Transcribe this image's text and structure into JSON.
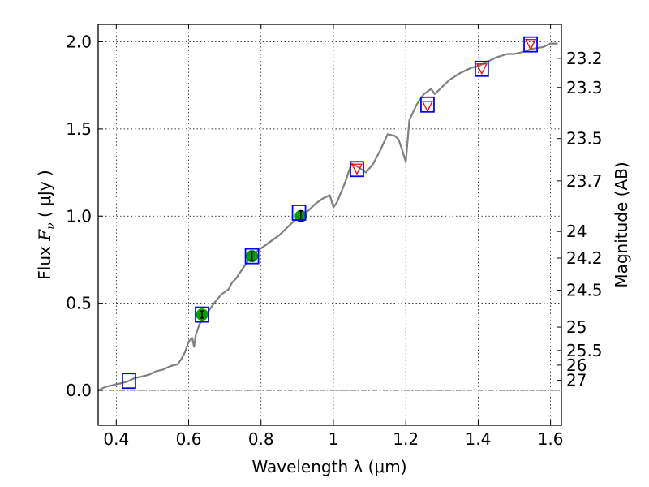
{
  "chart_data": {
    "type": "scatter",
    "xlabel": "Wavelength  λ (μm)",
    "ylabel_parts": [
      "Flux  ",
      "F",
      "ν",
      "  ( μJy )"
    ],
    "ylabel_right": "Magnitude (AB)",
    "xlim": [
      0.35,
      1.63
    ],
    "ylim": [
      -0.2,
      2.1
    ],
    "grid": true,
    "x_ticks": [
      0.4,
      0.6,
      0.8,
      1.0,
      1.2,
      1.4,
      1.6
    ],
    "x_tick_labels": [
      "0.4",
      "0.6",
      "0.8",
      "1",
      "1.2",
      "1.4",
      "1.6"
    ],
    "y_ticks": [
      0.0,
      0.5,
      1.0,
      1.5,
      2.0
    ],
    "y_tick_labels": [
      "0.0",
      "0.5",
      "1.0",
      "1.5",
      "2.0"
    ],
    "right_ticks": [
      {
        "label": "23.2",
        "flux": 1.905
      },
      {
        "label": "23.3",
        "flux": 1.738
      },
      {
        "label": "23.5",
        "flux": 1.445
      },
      {
        "label": "23.7",
        "flux": 1.202
      },
      {
        "label": "24",
        "flux": 0.912
      },
      {
        "label": "24.2",
        "flux": 0.759
      },
      {
        "label": "24.5",
        "flux": 0.575
      },
      {
        "label": "25",
        "flux": 0.363
      },
      {
        "label": "25.5",
        "flux": 0.229
      },
      {
        "label": "26",
        "flux": 0.145
      },
      {
        "label": "27",
        "flux": 0.058
      }
    ],
    "series": [
      {
        "name": "model_spectrum",
        "style": "line",
        "color": "#808080",
        "x": [
          0.35,
          0.37,
          0.39,
          0.41,
          0.43,
          0.45,
          0.47,
          0.49,
          0.51,
          0.53,
          0.55,
          0.57,
          0.58,
          0.59,
          0.6,
          0.61,
          0.615,
          0.62,
          0.63,
          0.65,
          0.67,
          0.69,
          0.71,
          0.72,
          0.73,
          0.75,
          0.77,
          0.79,
          0.81,
          0.83,
          0.85,
          0.87,
          0.89,
          0.91,
          0.93,
          0.95,
          0.97,
          0.99,
          1.0,
          1.01,
          1.03,
          1.05,
          1.07,
          1.09,
          1.11,
          1.13,
          1.15,
          1.17,
          1.18,
          1.19,
          1.2,
          1.21,
          1.23,
          1.25,
          1.27,
          1.28,
          1.3,
          1.32,
          1.35,
          1.38,
          1.4,
          1.42,
          1.45,
          1.48,
          1.5,
          1.52,
          1.55,
          1.58,
          1.6,
          1.62
        ],
        "y": [
          0.0,
          0.02,
          0.03,
          0.04,
          0.05,
          0.07,
          0.08,
          0.09,
          0.11,
          0.12,
          0.14,
          0.15,
          0.18,
          0.22,
          0.28,
          0.3,
          0.25,
          0.32,
          0.38,
          0.44,
          0.5,
          0.55,
          0.58,
          0.62,
          0.64,
          0.7,
          0.76,
          0.8,
          0.83,
          0.86,
          0.89,
          0.93,
          0.97,
          1.0,
          1.03,
          1.07,
          1.1,
          1.12,
          1.05,
          1.08,
          1.18,
          1.3,
          1.28,
          1.25,
          1.3,
          1.38,
          1.47,
          1.46,
          1.44,
          1.38,
          1.31,
          1.55,
          1.64,
          1.7,
          1.73,
          1.7,
          1.74,
          1.78,
          1.82,
          1.85,
          1.86,
          1.88,
          1.91,
          1.93,
          1.93,
          1.94,
          1.96,
          1.97,
          1.99,
          1.99
        ]
      },
      {
        "name": "model_photometry",
        "style": "open-square",
        "color": "#0000ff",
        "x": [
          0.435,
          0.637,
          0.775,
          0.905,
          1.065,
          1.26,
          1.41,
          1.545
        ],
        "y": [
          0.055,
          0.435,
          0.77,
          1.02,
          1.27,
          1.64,
          1.845,
          1.985
        ]
      },
      {
        "name": "upper_limits",
        "style": "down-triangle",
        "color": "#ff0000",
        "x": [
          1.065,
          1.26,
          1.41,
          1.545
        ],
        "y": [
          1.27,
          1.63,
          1.845,
          1.985
        ]
      },
      {
        "name": "observed_flux",
        "style": "filled-circle-errorbar",
        "color": "#00a000",
        "x": [
          0.637,
          0.775,
          0.91
        ],
        "y": [
          0.435,
          0.77,
          1.0
        ],
        "err": [
          0.02,
          0.025,
          0.03
        ]
      }
    ],
    "zero_line": 0.0
  }
}
